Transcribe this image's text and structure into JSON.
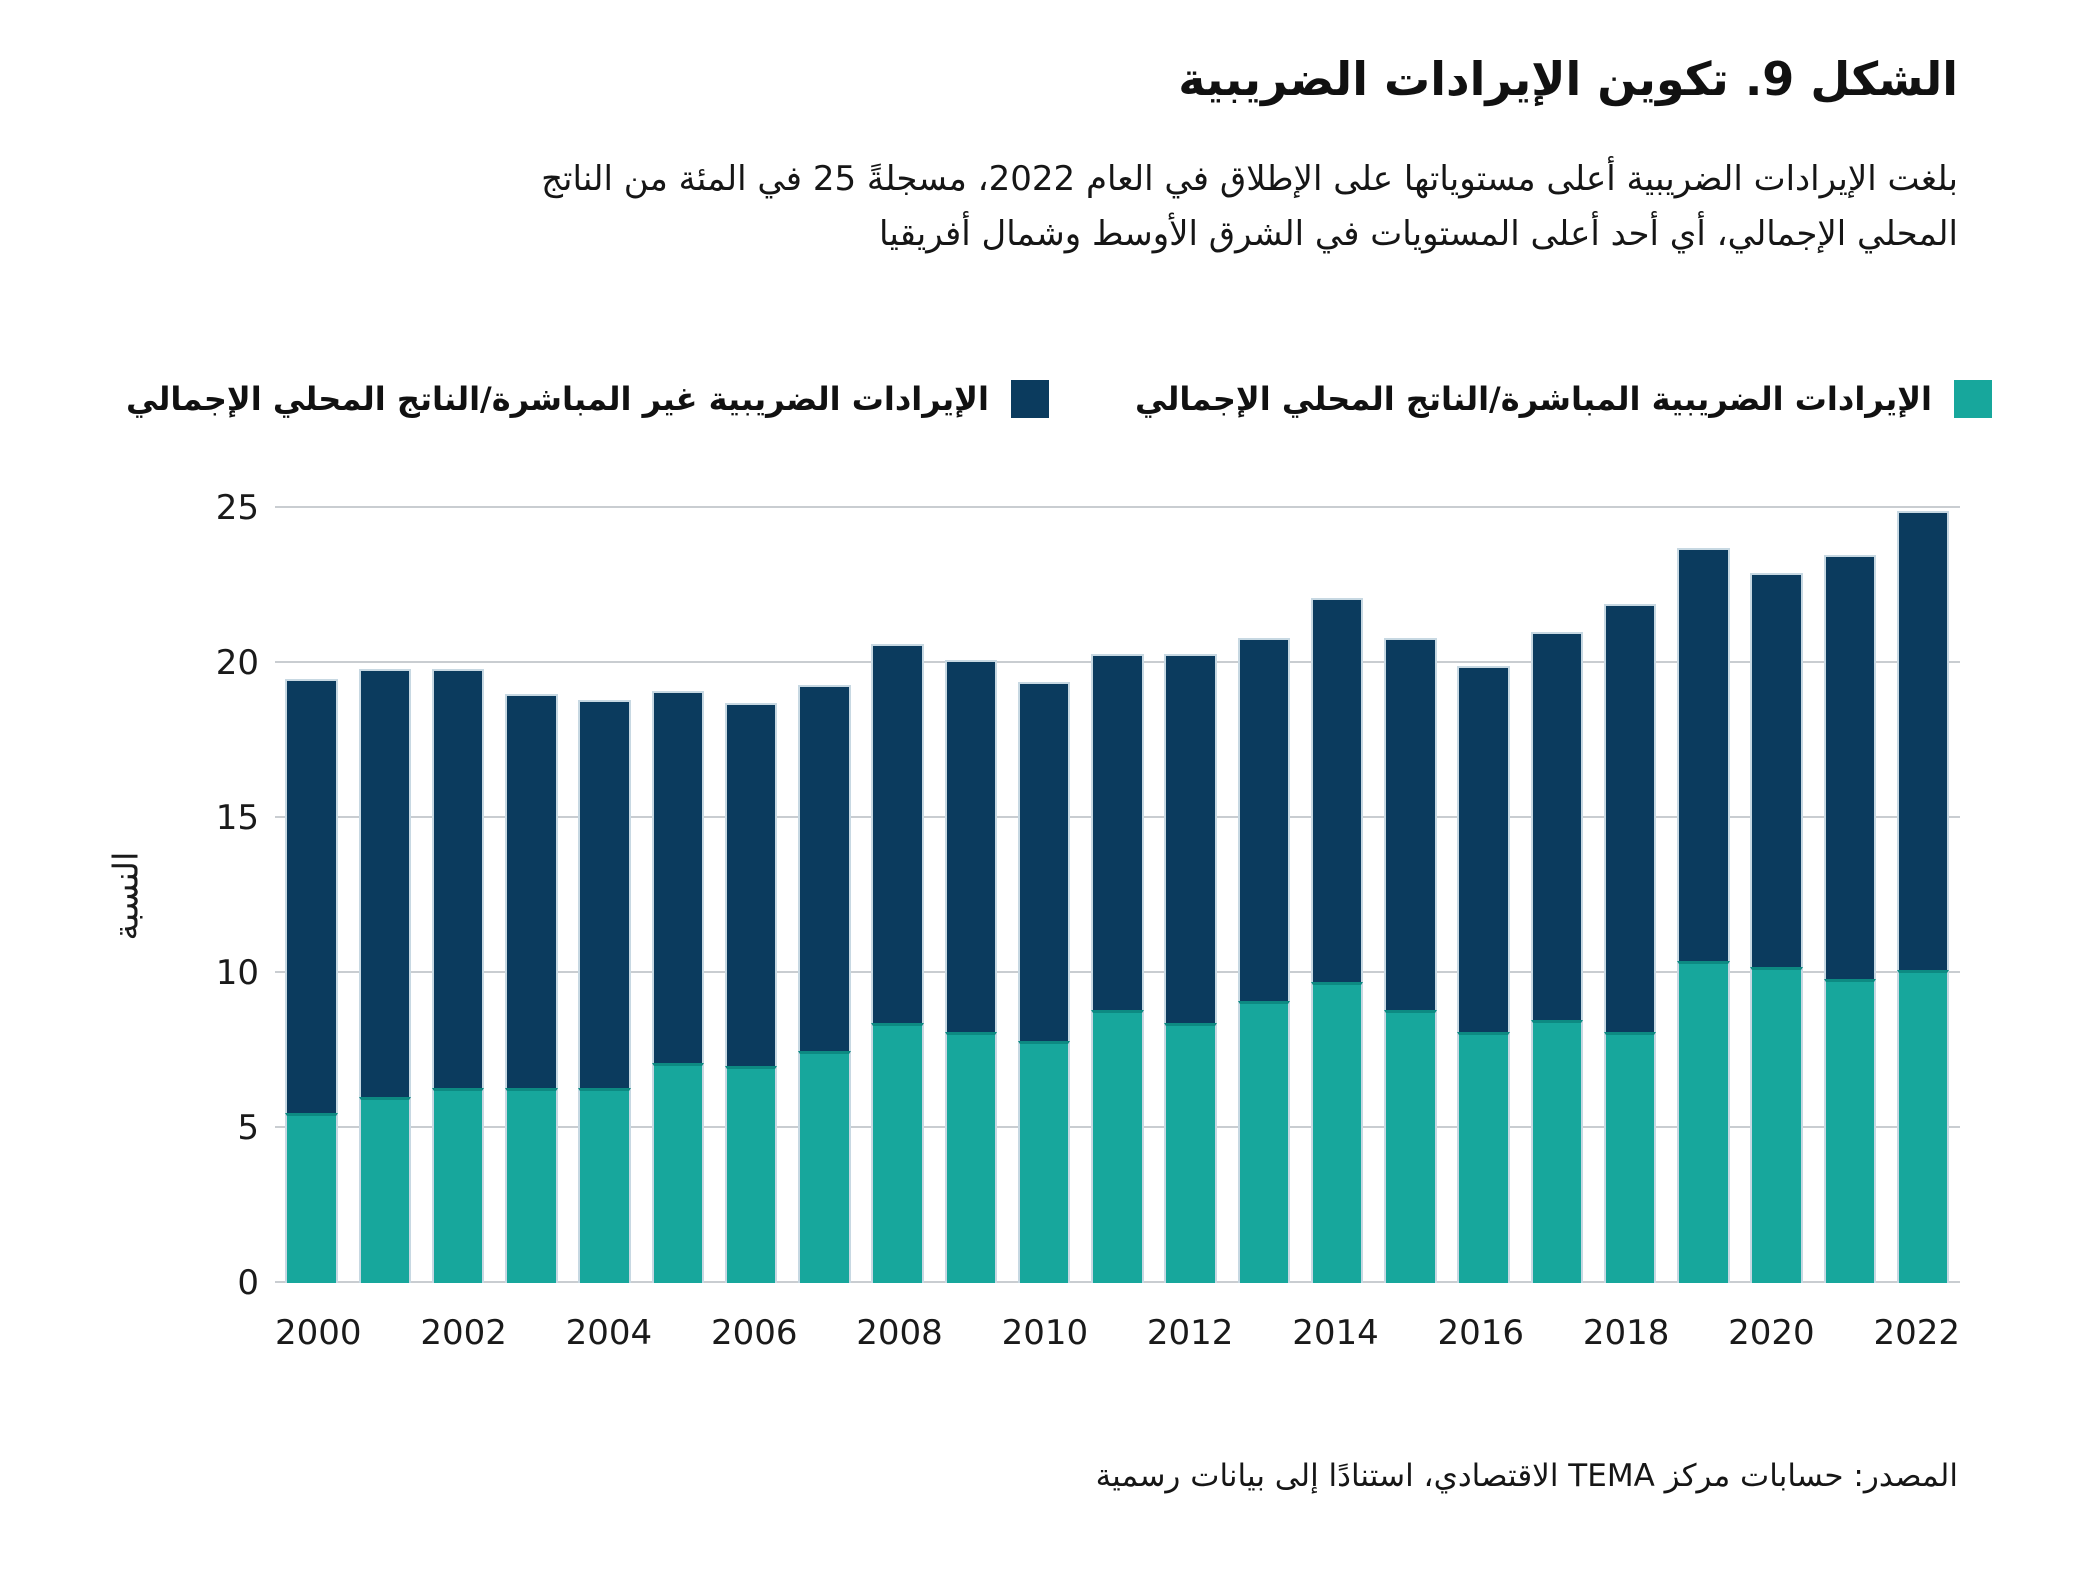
{
  "title": "الشكل 9. تكوين الإيرادات الضريبية",
  "subtitle": {
    "line1": "بلغت الإيرادات الضريبية أعلى مستوياتها على الإطلاق في العام 2022، مسجلةً 25 في المئة من الناتج",
    "line2": "المحلي الإجمالي، أي أحد أعلى المستويات في الشرق الأوسط وشمال أفريقيا"
  },
  "legend": {
    "direct_label": "الإيرادات الضريبية المباشرة/الناتج المحلي الإجمالي",
    "indirect_label": "الإيرادات الضريبية غير المباشرة/الناتج المحلي الإجمالي"
  },
  "colors": {
    "direct": "#17a79c",
    "indirect": "#0b3b5e",
    "gridline": "#c9cdd1",
    "bar_stroke": "#c7d8e2"
  },
  "y_axis": {
    "title": "النسبة",
    "ticks": [
      0,
      5,
      10,
      15,
      20,
      25
    ],
    "max": 25
  },
  "x_axis": {
    "tick_years": [
      2000,
      2002,
      2004,
      2006,
      2008,
      2010,
      2012,
      2014,
      2016,
      2018,
      2020,
      2022
    ]
  },
  "source": "المصدر: حسابات مركز TEMA الاقتصادي، استنادًا إلى بيانات رسمية",
  "chart_data": {
    "type": "bar",
    "stacked": true,
    "title": "الشكل 9. تكوين الإيرادات الضريبية",
    "ylabel": "النسبة",
    "ylim": [
      0,
      25
    ],
    "grid": true,
    "legend_position": "top",
    "categories": [
      2000,
      2001,
      2002,
      2003,
      2004,
      2005,
      2006,
      2007,
      2008,
      2009,
      2010,
      2011,
      2012,
      2013,
      2014,
      2015,
      2016,
      2017,
      2018,
      2019,
      2020,
      2021,
      2022
    ],
    "series": [
      {
        "name": "الإيرادات الضريبية المباشرة/الناتج المحلي الإجمالي",
        "color": "#17a79c",
        "values": [
          5.5,
          6.0,
          6.3,
          6.3,
          6.3,
          7.1,
          7.0,
          7.5,
          8.4,
          8.1,
          7.8,
          8.8,
          8.4,
          9.1,
          9.7,
          8.8,
          8.1,
          8.5,
          8.1,
          10.4,
          10.2,
          9.8,
          10.1
        ]
      },
      {
        "name": "الإيرادات الضريبية غير المباشرة/الناتج المحلي الإجمالي",
        "color": "#0b3b5e",
        "values": [
          14.0,
          13.8,
          13.5,
          12.7,
          12.5,
          12.0,
          11.7,
          11.8,
          12.2,
          12.0,
          11.6,
          11.5,
          11.9,
          11.7,
          12.4,
          12.0,
          11.8,
          12.5,
          13.8,
          13.3,
          12.7,
          13.7,
          14.8
        ]
      }
    ],
    "totals": [
      19.5,
      19.8,
      19.8,
      19.0,
      18.8,
      19.1,
      18.7,
      19.3,
      20.6,
      20.1,
      19.4,
      20.3,
      20.3,
      20.8,
      22.1,
      20.8,
      19.9,
      21.0,
      21.9,
      23.7,
      22.9,
      23.5,
      24.9
    ]
  }
}
